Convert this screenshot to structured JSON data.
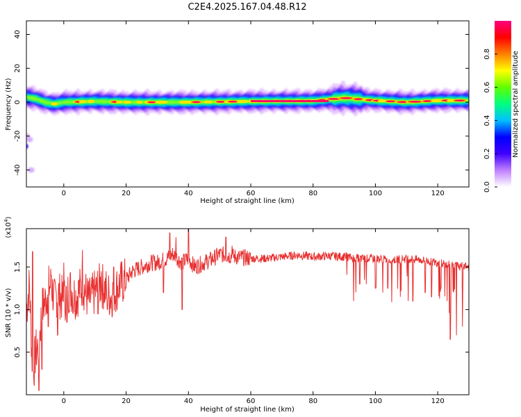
{
  "title": "C2E4.2025.167.04.48.R12",
  "chart_data": [
    {
      "type": "heatmap",
      "xlabel": "Height of straight line (km)",
      "ylabel": "Frequency (Hz)",
      "xlim": [
        -12,
        130
      ],
      "ylim": [
        -50,
        48
      ],
      "xticks": [
        0,
        20,
        40,
        60,
        80,
        100,
        120
      ],
      "yticks": [
        -40,
        -20,
        0,
        20,
        40
      ],
      "ridge": [
        [
          -12,
          3
        ],
        [
          -9,
          2
        ],
        [
          -6,
          0
        ],
        [
          -3,
          -1
        ],
        [
          0,
          0
        ],
        [
          10,
          0.5
        ],
        [
          20,
          0
        ],
        [
          40,
          0
        ],
        [
          60,
          0.5
        ],
        [
          80,
          0.8
        ],
        [
          90,
          2.5
        ],
        [
          100,
          1
        ],
        [
          110,
          0
        ],
        [
          120,
          1
        ],
        [
          130,
          1
        ]
      ],
      "blobs": [
        [
          -13.5,
          -30
        ],
        [
          -12.5,
          -26
        ],
        [
          -12,
          -20
        ],
        [
          -11,
          -22
        ],
        [
          -10.5,
          -40
        ]
      ],
      "colorbar": {
        "label": "Normalized spectral amplitude",
        "range": [
          0,
          1
        ],
        "ticks": [
          0,
          0.2,
          0.4,
          0.6,
          0.8
        ],
        "tick_labels": [
          "0.0",
          "0.2",
          "0.4",
          "0.6",
          "0.8"
        ],
        "colors": [
          "#ffffff",
          "#c080ff",
          "#4000ff",
          "#0000ff",
          "#00c0ff",
          "#00ff80",
          "#60ff00",
          "#ffff00",
          "#ff8000",
          "#ff0000",
          "#ff0080"
        ]
      }
    },
    {
      "type": "line",
      "xlabel": "Height of straight line (km)",
      "ylabel": "SNR (10 * v/v)",
      "y_exponent": "(x10",
      "y_exponent_sup": "4",
      "y_exponent_close": ")",
      "xlim": [
        -12,
        130
      ],
      "ylim": [
        0,
        1.95
      ],
      "xticks": [
        0,
        20,
        40,
        60,
        80,
        100,
        120
      ],
      "yticks": [
        0.5,
        1.0,
        1.5
      ],
      "ytick_labels": [
        "0.5",
        "1.0",
        "1.5"
      ],
      "color": "#e83030",
      "x": [
        -12,
        -11,
        -10,
        -9,
        -8,
        -7,
        -6,
        -5,
        -4,
        -3,
        -2,
        0,
        2,
        4,
        6,
        8,
        10,
        12,
        15,
        18,
        20,
        22,
        25,
        28,
        30,
        33,
        35,
        38,
        40,
        42,
        45,
        48,
        50,
        55,
        60,
        65,
        70,
        75,
        80,
        85,
        90,
        95,
        100,
        105,
        110,
        115,
        120,
        125,
        130
      ],
      "y": [
        1.0,
        1.3,
        0.2,
        0.5,
        0.6,
        1.0,
        1.1,
        1.25,
        1.3,
        1.1,
        1.2,
        1.1,
        1.25,
        1.15,
        1.3,
        1.1,
        1.2,
        1.3,
        1.15,
        1.3,
        1.35,
        1.45,
        1.5,
        1.55,
        1.55,
        1.6,
        1.65,
        1.55,
        1.6,
        1.5,
        1.55,
        1.6,
        1.65,
        1.62,
        1.6,
        1.6,
        1.62,
        1.64,
        1.62,
        1.63,
        1.62,
        1.6,
        1.6,
        1.58,
        1.6,
        1.58,
        1.55,
        1.52,
        1.5
      ],
      "dips": [
        [
          -8,
          0.05
        ],
        [
          -7,
          0.3
        ],
        [
          -5,
          0.8
        ],
        [
          -2,
          0.7
        ],
        [
          1,
          0.85
        ],
        [
          3,
          0.95
        ],
        [
          6,
          0.85
        ],
        [
          11,
          0.95
        ],
        [
          14,
          1.0
        ],
        [
          32,
          1.2
        ],
        [
          38,
          1.0
        ],
        [
          40,
          1.55
        ],
        [
          93,
          1.1
        ],
        [
          95,
          1.3
        ],
        [
          100,
          1.25
        ],
        [
          104,
          1.25
        ],
        [
          108,
          1.15
        ],
        [
          112,
          1.1
        ],
        [
          116,
          1.2
        ],
        [
          118,
          1.15
        ],
        [
          121,
          1.25
        ],
        [
          123,
          1.1
        ],
        [
          124,
          0.65
        ],
        [
          126,
          0.7
        ],
        [
          128,
          0.8
        ]
      ],
      "peaks": [
        [
          -10,
          1.68
        ],
        [
          -4,
          1.4
        ],
        [
          0,
          1.55
        ],
        [
          6,
          1.7
        ],
        [
          12,
          1.45
        ],
        [
          16,
          1.5
        ],
        [
          34,
          1.9
        ],
        [
          36,
          1.85
        ],
        [
          40,
          1.95
        ],
        [
          52,
          1.85
        ],
        [
          54,
          1.75
        ]
      ]
    }
  ]
}
